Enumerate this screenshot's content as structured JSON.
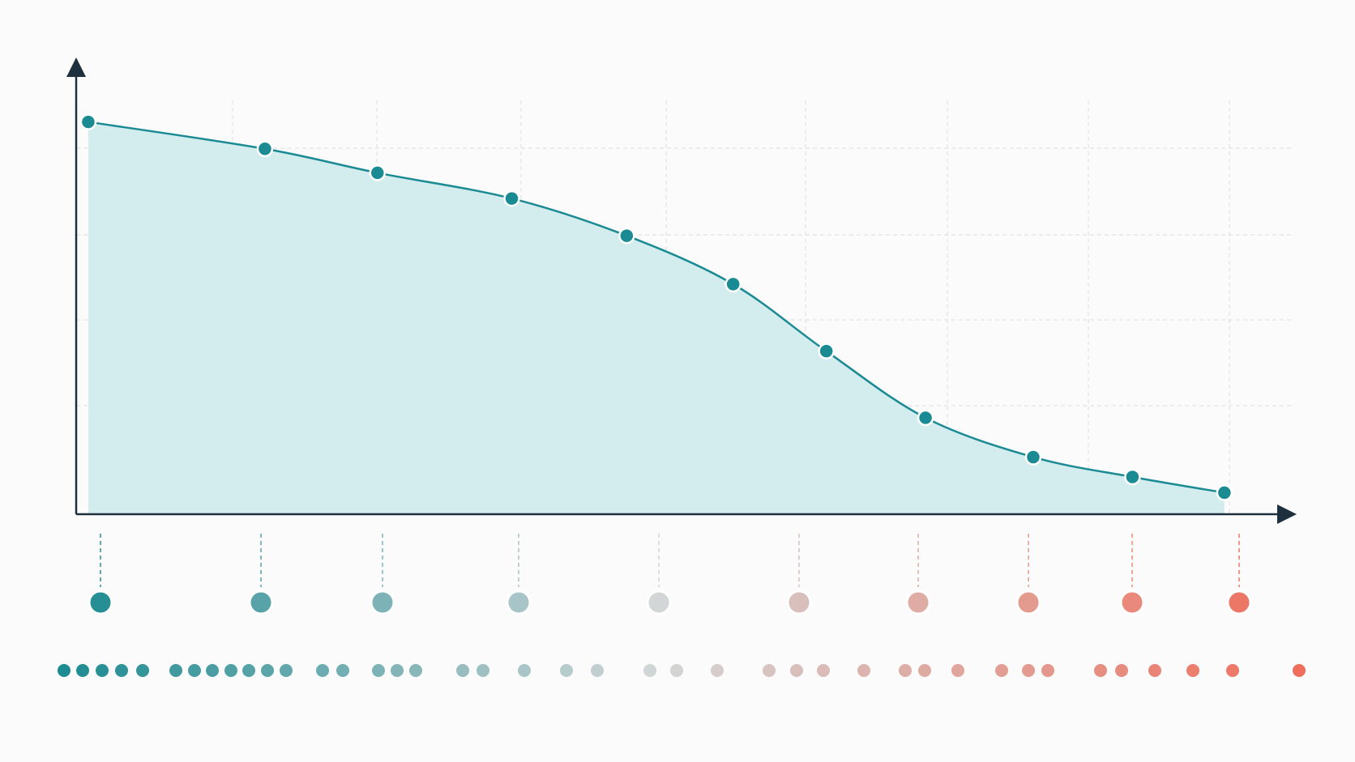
{
  "chart_data": {
    "type": "area",
    "x": [
      1.0,
      15.6,
      24.9,
      36.0,
      45.5,
      54.3,
      62.0,
      70.2,
      79.1,
      87.3,
      94.9
    ],
    "values": [
      94.8,
      88.3,
      82.5,
      76.3,
      67.3,
      55.6,
      39.4,
      23.3,
      13.8,
      9.0,
      5.2
    ],
    "xlim": [
      0,
      100
    ],
    "ylim": [
      0,
      100
    ],
    "color": "#1a8a93",
    "fill_color": "#d3eced",
    "grid": true
  }
}
